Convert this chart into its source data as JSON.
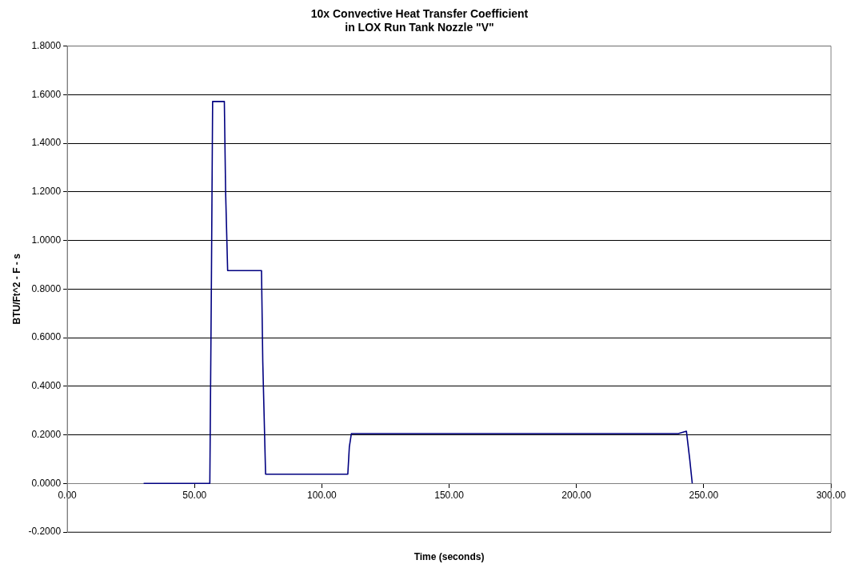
{
  "chart_data": {
    "type": "line",
    "title": "10x Convective Heat Transfer Coefficient\nin LOX Run Tank Nozzle \"V\"",
    "xlabel": "Time (seconds)",
    "ylabel": "BTU/Ft^2 - F - s",
    "x": [
      30,
      56,
      56.6,
      57.1,
      61.7,
      62.2,
      63,
      76.3,
      76.8,
      77.9,
      110.2,
      110.8,
      111.6,
      240,
      243.2,
      244.5,
      245.5
    ],
    "series": [
      {
        "color": "#000080",
        "values": [
          0,
          0,
          0.8,
          1.572,
          1.572,
          1.2,
          0.876,
          0.876,
          0.5,
          0.038,
          0.038,
          0.15,
          0.205,
          0.205,
          0.215,
          0.1,
          0
        ]
      }
    ],
    "xlim": [
      0,
      300
    ],
    "xticks": [
      {
        "value": 0,
        "label": "0.00"
      },
      {
        "value": 50,
        "label": "50.00"
      },
      {
        "value": 100,
        "label": "100.00"
      },
      {
        "value": 150,
        "label": "150.00"
      },
      {
        "value": 200,
        "label": "200.00"
      },
      {
        "value": 250,
        "label": "250.00"
      },
      {
        "value": 300,
        "label": "300.00"
      }
    ],
    "ylim": [
      -0.2,
      1.8
    ],
    "yticks": [
      {
        "value": -0.2,
        "label": "-0.2000"
      },
      {
        "value": 0,
        "label": "0.0000"
      },
      {
        "value": 0.2,
        "label": "0.2000"
      },
      {
        "value": 0.4,
        "label": "0.4000"
      },
      {
        "value": 0.6,
        "label": "0.6000"
      },
      {
        "value": 0.8,
        "label": "0.8000"
      },
      {
        "value": 1.0,
        "label": "1.0000"
      },
      {
        "value": 1.2,
        "label": "1.2000"
      },
      {
        "value": 1.4,
        "label": "1.4000"
      },
      {
        "value": 1.6,
        "label": "1.6000"
      },
      {
        "value": 1.8,
        "label": "1.8000"
      }
    ],
    "grid": "y",
    "legend": false,
    "marker": "none",
    "line_style": "solid"
  }
}
